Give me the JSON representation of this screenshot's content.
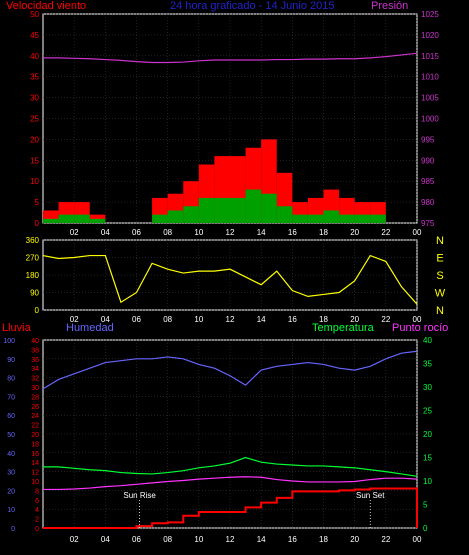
{
  "colors": {
    "background": "#000000",
    "frame": "#ffffff",
    "wind_axis": "#ff0000",
    "pressure": "#cc33cc",
    "title": "#2222cc",
    "direction": "#ffff00",
    "humidity": "#6666ff",
    "temperature": "#00ff33",
    "dewpoint": "#ff33ff",
    "rain": "#ff0000",
    "gust_fill": "#ff0000",
    "avg_fill": "#00a000",
    "min_fill": "#ffffff",
    "grid": "#404040"
  },
  "header": {
    "wind_label": "Velocidad viento",
    "title": "24 hora graficado - 14 Junio 2015",
    "pressure_label": "Presión"
  },
  "footer_labels": {
    "rain": "Lluvia",
    "humidity": "Humedad",
    "temperature": "Temperatura",
    "dewpoint": "Punto rocío",
    "sun_rise": "Sun Rise",
    "sun_set": "Sun Set"
  },
  "compass": [
    "N",
    "W",
    "S",
    "E",
    "N"
  ],
  "chart_data": [
    {
      "type": "area",
      "name": "wind_pressure_panel",
      "x_ticks": [
        "02",
        "04",
        "06",
        "08",
        "10",
        "12",
        "14",
        "16",
        "18",
        "20",
        "22",
        "00"
      ],
      "ylim_left": [
        0,
        50
      ],
      "yticks_left": [
        0,
        5,
        10,
        15,
        20,
        25,
        30,
        35,
        40,
        45,
        50
      ],
      "ylim_right": [
        975,
        1025
      ],
      "yticks_right": [
        975,
        980,
        985,
        990,
        995,
        1000,
        1005,
        1010,
        1015,
        1020,
        1025
      ],
      "x_hours": [
        0,
        1,
        2,
        3,
        4,
        5,
        6,
        7,
        8,
        9,
        10,
        11,
        12,
        13,
        14,
        15,
        16,
        17,
        18,
        19,
        20,
        21,
        22,
        23,
        24
      ],
      "gust": [
        3,
        5,
        5,
        2,
        0,
        0,
        0,
        6,
        7,
        10,
        14,
        16,
        16,
        18,
        20,
        12,
        5,
        6,
        8,
        6,
        5,
        5,
        0,
        0,
        0
      ],
      "average": [
        1,
        2,
        2,
        1,
        0,
        0,
        0,
        2,
        3,
        4,
        6,
        6,
        6,
        8,
        7,
        4,
        2,
        2,
        3,
        2,
        2,
        2,
        0,
        0,
        0
      ],
      "pressure": [
        1014.5,
        1014.5,
        1014.4,
        1014.3,
        1014.1,
        1013.9,
        1013.6,
        1013.4,
        1013.4,
        1013.5,
        1013.8,
        1014.0,
        1014.0,
        1014.0,
        1014.0,
        1014.1,
        1014.1,
        1014.2,
        1014.2,
        1014.3,
        1014.3,
        1014.5,
        1014.8,
        1015.2,
        1015.6
      ]
    },
    {
      "type": "line",
      "name": "wind_direction_panel",
      "x_ticks": [
        "02",
        "04",
        "06",
        "08",
        "10",
        "12",
        "14",
        "16",
        "18",
        "20",
        "22",
        "00"
      ],
      "ylim": [
        0,
        360
      ],
      "yticks": [
        0,
        90,
        180,
        270,
        360
      ],
      "x_hours": [
        0,
        1,
        2,
        3,
        4,
        5,
        6,
        7,
        8,
        9,
        10,
        11,
        12,
        13,
        14,
        15,
        16,
        17,
        18,
        19,
        20,
        21,
        22,
        23,
        24
      ],
      "direction": [
        280,
        265,
        270,
        280,
        280,
        40,
        90,
        240,
        210,
        190,
        200,
        200,
        210,
        170,
        130,
        200,
        100,
        70,
        80,
        90,
        150,
        280,
        250,
        120,
        30
      ]
    },
    {
      "type": "line",
      "name": "humidity_temp_rain_panel",
      "x_ticks": [
        "02",
        "04",
        "06",
        "08",
        "10",
        "12",
        "14",
        "16",
        "18",
        "20",
        "22",
        "00"
      ],
      "ylim_humidity": [
        0,
        100
      ],
      "yticks_humidity": [
        0,
        10,
        20,
        30,
        40,
        50,
        60,
        70,
        80,
        90,
        100
      ],
      "ylim_rain": [
        0,
        40
      ],
      "yticks_rain": [
        0,
        2,
        4,
        6,
        8,
        10,
        12,
        14,
        16,
        18,
        20,
        22,
        24,
        26,
        28,
        30,
        32,
        34,
        36,
        38,
        40
      ],
      "ylim_temperature": [
        0,
        40
      ],
      "yticks_temperature": [
        0,
        5,
        10,
        15,
        20,
        25,
        30,
        35,
        40
      ],
      "x_hours": [
        0,
        1,
        2,
        3,
        4,
        5,
        6,
        7,
        8,
        9,
        10,
        11,
        12,
        13,
        14,
        15,
        16,
        17,
        18,
        19,
        20,
        21,
        22,
        23,
        24
      ],
      "humidity": [
        74,
        79,
        82,
        85,
        88,
        89,
        90,
        90,
        91,
        90,
        87,
        85,
        81,
        76,
        84,
        86,
        87,
        88,
        87,
        85,
        84,
        86,
        90,
        93,
        94
      ],
      "temperature": [
        13,
        13,
        12.7,
        12.4,
        12.2,
        11.8,
        11.6,
        11.5,
        11.8,
        12.2,
        12.8,
        13.2,
        13.8,
        15,
        14,
        13.6,
        13.4,
        13.2,
        13.2,
        13.0,
        12.8,
        12.4,
        12.0,
        11.5,
        11
      ],
      "dewpoint": [
        8.2,
        8.2,
        8.3,
        8.5,
        8.8,
        9.0,
        9.3,
        9.6,
        9.9,
        10.1,
        10.4,
        10.6,
        10.8,
        10.9,
        10.8,
        10.3,
        10.0,
        9.8,
        9.8,
        9.8,
        9.9,
        10.3,
        10.6,
        10.6,
        10.4
      ],
      "rain": [
        0,
        0,
        0,
        0,
        0,
        0,
        0.4,
        1,
        1.2,
        2.6,
        3.4,
        3.4,
        3.4,
        4.4,
        5.4,
        6.4,
        7.8,
        7.8,
        7.8,
        8.0,
        8.2,
        8.4,
        8.4,
        8.4,
        8.4
      ],
      "sun_rise_hour": 6.2,
      "sun_set_hour": 21.0
    }
  ]
}
